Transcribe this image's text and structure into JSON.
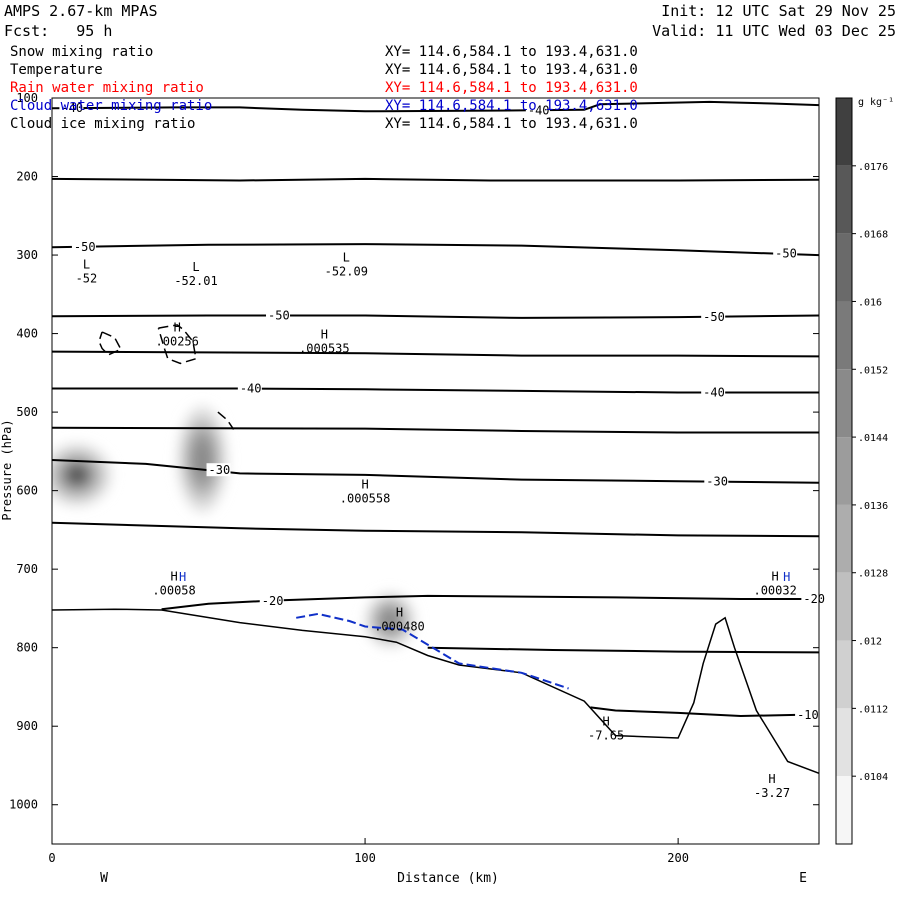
{
  "header": {
    "model": "AMPS 2.67-km MPAS",
    "forecast": "Fcst:   95 h",
    "init": "Init: 12 UTC Sat 29 Nov 25",
    "valid": "Valid: 11 UTC Wed 03 Dec 25"
  },
  "fields": [
    {
      "name": "Snow mixing ratio",
      "xy": "XY= 114.6,584.1 to 193.4,631.0",
      "color": "#000000"
    },
    {
      "name": "Temperature",
      "xy": "XY= 114.6,584.1 to 193.4,631.0",
      "color": "#000000"
    },
    {
      "name": "Rain water mixing ratio",
      "xy": "XY= 114.6,584.1 to 193.4,631.0",
      "color": "#ff0000"
    },
    {
      "name": "Cloud water mixing ratio",
      "xy": "XY= 114.6,584.1 to 193.4,631.0",
      "color": "#0000cc"
    },
    {
      "name": "Cloud ice mixing ratio",
      "xy": "XY= 114.6,584.1 to 193.4,631.0",
      "color": "#000000"
    }
  ],
  "chart_data": {
    "type": "cross-section",
    "xlabel": "Distance (km)",
    "ylabel": "Pressure (hPa)",
    "xlim": [
      0,
      245
    ],
    "ylim": [
      1050,
      100
    ],
    "x_ticks": [
      0,
      100,
      200
    ],
    "y_ticks": [
      100,
      200,
      300,
      400,
      500,
      600,
      700,
      800,
      900,
      1000
    ],
    "left_end": "W",
    "right_end": "E",
    "colorbar": {
      "unit": "g kg⁻¹",
      "levels": [
        ".0176",
        ".0168",
        ".016",
        ".0152",
        ".0144",
        ".0136",
        ".0128",
        ".012",
        ".0112",
        ".0104"
      ],
      "colors": [
        "#404040",
        "#585858",
        "#6a6a6a",
        "#7a7a7a",
        "#8a8a8a",
        "#9c9c9c",
        "#adadad",
        "#bfbfbf",
        "#d0d0d0",
        "#e2e2e2",
        "#f6f6f6"
      ]
    },
    "isotherms": [
      {
        "label": "-40",
        "points": [
          [
            0,
            113
          ],
          [
            40,
            112
          ],
          [
            60,
            112
          ],
          [
            80,
            115
          ],
          [
            100,
            117
          ],
          [
            140,
            116
          ],
          [
            170,
            115
          ],
          [
            175,
            108
          ],
          [
            210,
            105
          ],
          [
            230,
            107
          ],
          [
            245,
            109
          ]
        ],
        "labels": [
          [
            3,
            "-40"
          ],
          [
            152,
            "-40"
          ]
        ]
      },
      {
        "label": "",
        "points": [
          [
            0,
            203
          ],
          [
            60,
            205
          ],
          [
            100,
            203
          ],
          [
            140,
            205
          ],
          [
            200,
            205
          ],
          [
            245,
            204
          ]
        ],
        "labels": []
      },
      {
        "label": "-50",
        "points": [
          [
            0,
            290
          ],
          [
            50,
            287
          ],
          [
            100,
            286
          ],
          [
            150,
            288
          ],
          [
            200,
            294
          ],
          [
            245,
            300
          ]
        ],
        "labels": [
          [
            7,
            "-50"
          ],
          [
            231,
            "-50"
          ]
        ]
      },
      {
        "label": "-50",
        "points": [
          [
            0,
            378
          ],
          [
            50,
            377
          ],
          [
            100,
            377
          ],
          [
            150,
            380
          ],
          [
            200,
            379
          ],
          [
            245,
            377
          ]
        ],
        "labels": [
          [
            69,
            "-50"
          ],
          [
            208,
            "-50"
          ]
        ]
      },
      {
        "label": "",
        "points": [
          [
            0,
            423
          ],
          [
            100,
            425
          ],
          [
            150,
            428
          ],
          [
            200,
            428
          ],
          [
            245,
            429
          ]
        ],
        "labels": []
      },
      {
        "label": "-40",
        "points": [
          [
            0,
            470
          ],
          [
            60,
            470
          ],
          [
            100,
            471
          ],
          [
            150,
            473
          ],
          [
            200,
            475
          ],
          [
            245,
            475
          ]
        ],
        "labels": [
          [
            60,
            "-40"
          ],
          [
            208,
            "-40"
          ]
        ]
      },
      {
        "label": "",
        "points": [
          [
            0,
            520
          ],
          [
            100,
            521
          ],
          [
            150,
            524
          ],
          [
            200,
            526
          ],
          [
            245,
            526
          ]
        ],
        "labels": []
      },
      {
        "label": "-30",
        "points": [
          [
            0,
            561
          ],
          [
            30,
            566
          ],
          [
            60,
            578
          ],
          [
            100,
            580
          ],
          [
            150,
            586
          ],
          [
            200,
            588
          ],
          [
            245,
            590
          ]
        ],
        "labels": [
          [
            50,
            "-30"
          ],
          [
            209,
            "-30"
          ]
        ]
      },
      {
        "label": "",
        "points": [
          [
            0,
            641
          ],
          [
            60,
            648
          ],
          [
            100,
            651
          ],
          [
            150,
            653
          ],
          [
            200,
            657
          ],
          [
            245,
            658
          ]
        ],
        "labels": []
      },
      {
        "label": "-20",
        "points": [
          [
            35,
            751
          ],
          [
            50,
            744
          ],
          [
            70,
            740
          ],
          [
            100,
            736
          ],
          [
            120,
            734
          ],
          [
            180,
            736
          ],
          [
            220,
            738
          ],
          [
            245,
            738
          ]
        ],
        "labels": [
          [
            67,
            "-20"
          ],
          [
            240,
            "-20"
          ]
        ]
      },
      {
        "label": "",
        "points": [
          [
            120,
            800
          ],
          [
            160,
            803
          ],
          [
            200,
            805
          ],
          [
            245,
            806
          ]
        ],
        "labels": []
      },
      {
        "label": "-10",
        "points": [
          [
            172,
            876
          ],
          [
            180,
            880
          ],
          [
            200,
            883
          ],
          [
            220,
            887
          ],
          [
            245,
            885
          ]
        ],
        "labels": [
          [
            238,
            "-10"
          ]
        ]
      }
    ],
    "terrain": [
      [
        0,
        752
      ],
      [
        20,
        751
      ],
      [
        35,
        752
      ],
      [
        60,
        768
      ],
      [
        80,
        778
      ],
      [
        100,
        786
      ],
      [
        110,
        793
      ],
      [
        120,
        810
      ],
      [
        130,
        822
      ],
      [
        150,
        832
      ],
      [
        170,
        868
      ],
      [
        180,
        912
      ],
      [
        200,
        915
      ],
      [
        205,
        870
      ],
      [
        208,
        820
      ],
      [
        212,
        770
      ],
      [
        215,
        762
      ],
      [
        218,
        800
      ],
      [
        225,
        880
      ],
      [
        235,
        945
      ],
      [
        245,
        960
      ]
    ],
    "cloud_water": [
      [
        78,
        762
      ],
      [
        85,
        757
      ],
      [
        95,
        766
      ],
      [
        100,
        773
      ],
      [
        112,
        777
      ],
      [
        130,
        820
      ],
      [
        150,
        832
      ],
      [
        165,
        852
      ]
    ],
    "cloud_ice_contours": [
      {
        "points": [
          [
            16,
            398
          ],
          [
            20,
            405
          ],
          [
            22,
            420
          ],
          [
            18,
            427
          ],
          [
            16,
            419
          ],
          [
            15,
            410
          ],
          [
            16,
            398
          ]
        ]
      },
      {
        "points": [
          [
            34,
            393
          ],
          [
            40,
            389
          ],
          [
            42,
            395
          ],
          [
            45,
            410
          ],
          [
            46,
            432
          ],
          [
            41,
            438
          ],
          [
            37,
            432
          ],
          [
            36,
            420
          ],
          [
            34,
            393
          ]
        ]
      },
      {
        "points": [
          [
            53,
            500
          ],
          [
            56,
            510
          ],
          [
            58,
            522
          ]
        ]
      }
    ],
    "snow_blobs": [
      {
        "x": 8,
        "p": 580,
        "rx": 11,
        "ry": 40,
        "level": 0.0176
      },
      {
        "x": 48,
        "p": 560,
        "rx": 8,
        "ry": 68,
        "level": 0.0144
      },
      {
        "x": 108,
        "p": 765,
        "rx": 8,
        "ry": 35,
        "level": 0.0136
      }
    ],
    "extrema": [
      {
        "type": "L",
        "value": "-52",
        "x": 11,
        "p": 335
      },
      {
        "type": "L",
        "value": "-52.01",
        "x": 46,
        "p": 338
      },
      {
        "type": "L",
        "value": "-52.09",
        "x": 94,
        "p": 326
      },
      {
        "type": "H",
        "value": ".00256",
        "x": 40,
        "p": 415
      },
      {
        "type": "H",
        "value": ".000535",
        "x": 87,
        "p": 424
      },
      {
        "type": "H",
        "value": ".000558",
        "x": 100,
        "p": 615
      },
      {
        "type": "H",
        "value": ".00058",
        "x": 39,
        "p": 732
      },
      {
        "type": "H",
        "value": ".000480",
        "x": 111,
        "p": 778
      },
      {
        "type": "H",
        "value": "-7.65",
        "x": 177,
        "p": 917
      },
      {
        "type": "H",
        "value": ".00032",
        "x": 231,
        "p": 732
      },
      {
        "type": "H",
        "value": "-3.27",
        "x": 230,
        "p": 990
      }
    ],
    "blue_h_markers": [
      {
        "x": 38,
        "p": 710
      },
      {
        "x": 231,
        "p": 710
      }
    ]
  }
}
